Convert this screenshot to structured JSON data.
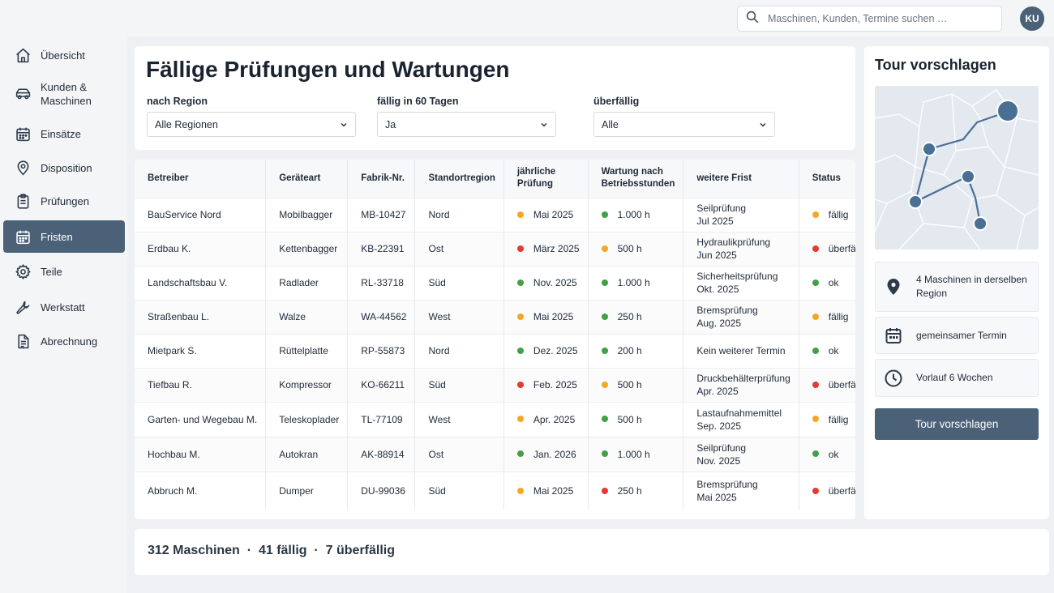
{
  "search": {
    "placeholder": "Maschinen, Kunden, Termine suchen …"
  },
  "user": {
    "initials": "KU"
  },
  "sidebar": {
    "items": [
      {
        "label": "Übersicht",
        "icon": "home-icon"
      },
      {
        "label": "Kunden & Maschinen",
        "icon": "truck-icon"
      },
      {
        "label": "Einsätze",
        "icon": "calendar-icon"
      },
      {
        "label": "Disposition",
        "icon": "map-pin-icon"
      },
      {
        "label": "Prüfungen",
        "icon": "clipboard-icon"
      },
      {
        "label": "Fristen",
        "icon": "calendar-icon",
        "active": true
      },
      {
        "label": "Teile",
        "icon": "gear-icon"
      },
      {
        "label": "Werkstatt",
        "icon": "wrench-icon"
      },
      {
        "label": "Abrechnung",
        "icon": "document-icon"
      }
    ]
  },
  "filters": {
    "title": "Fällige Prüfungen und Wartungen",
    "region": {
      "label": "nach Region",
      "value": "Alle Regionen"
    },
    "due": {
      "label": "fällig in 60 Tagen",
      "value": "Ja"
    },
    "overdue": {
      "label": "überfällig",
      "value": "Alle"
    }
  },
  "table": {
    "headers": [
      "Betreiber",
      "Geräteart",
      "Fabrik-Nr.",
      "Standortregion",
      "jährliche Prüfung",
      "Wartung nach Betriebsstunden",
      "weitere Frist",
      "Status"
    ],
    "rows": [
      {
        "operator": "BauService Nord",
        "type": "Mobilbagger",
        "serial": "MB-10427",
        "region": "Nord",
        "annual": "Mai 2025",
        "annual_status": "orange",
        "hours": "1.000 h",
        "hours_status": "green",
        "deadline_name": "Seilprüfung",
        "deadline_date": "Jul 2025",
        "status": "fällig",
        "status_color": "orange"
      },
      {
        "operator": "Erdbau K.",
        "type": "Kettenbagger",
        "serial": "KB-22391",
        "region": "Ost",
        "annual": "März 2025",
        "annual_status": "red",
        "hours": "500 h",
        "hours_status": "orange",
        "deadline_name": "Hydraulikprüfung",
        "deadline_date": "Jun 2025",
        "status": "überfällig",
        "status_color": "red"
      },
      {
        "operator": "Landschaftsbau V.",
        "type": "Radlader",
        "serial": "RL-33718",
        "region": "Süd",
        "annual": "Nov. 2025",
        "annual_status": "green",
        "hours": "1.000 h",
        "hours_status": "green",
        "deadline_name": "Sicherheitsprüfung",
        "deadline_date": "Okt. 2025",
        "status": "ok",
        "status_color": "green"
      },
      {
        "operator": "Straßenbau L.",
        "type": "Walze",
        "serial": "WA-44562",
        "region": "West",
        "annual": "Mai 2025",
        "annual_status": "orange",
        "hours": "250 h",
        "hours_status": "green",
        "deadline_name": "Bremsprüfung",
        "deadline_date": "Aug. 2025",
        "status": "fällig",
        "status_color": "orange"
      },
      {
        "operator": "Mietpark S.",
        "type": "Rüttelplatte",
        "serial": "RP-55873",
        "region": "Nord",
        "annual": "Dez. 2025",
        "annual_status": "green",
        "hours": "200 h",
        "hours_status": "green",
        "deadline_name": "Kein weiterer Termin",
        "deadline_date": "",
        "status": "ok",
        "status_color": "green"
      },
      {
        "operator": "Tiefbau R.",
        "type": "Kompressor",
        "serial": "KO-66211",
        "region": "Süd",
        "annual": "Feb. 2025",
        "annual_status": "red",
        "hours": "500 h",
        "hours_status": "orange",
        "deadline_name": "Druckbehälterprüfung",
        "deadline_date": "Apr. 2025",
        "status": "überfällig",
        "status_color": "red"
      },
      {
        "operator": "Garten- und Wegebau M.",
        "type": "Teleskoplader",
        "serial": "TL-77109",
        "region": "West",
        "annual": "Apr. 2025",
        "annual_status": "orange",
        "hours": "500 h",
        "hours_status": "green",
        "deadline_name": "Lastaufnahmemittel",
        "deadline_date": "Sep. 2025",
        "status": "fällig",
        "status_color": "orange"
      },
      {
        "operator": "Hochbau M.",
        "type": "Autokran",
        "serial": "AK-88914",
        "region": "Ost",
        "annual": "Jan. 2026",
        "annual_status": "green",
        "hours": "1.000 h",
        "hours_status": "green",
        "deadline_name": "Seilprüfung",
        "deadline_date": "Nov. 2025",
        "status": "ok",
        "status_color": "green"
      },
      {
        "operator": "Abbruch M.",
        "type": "Dumper",
        "serial": "DU-99036",
        "region": "Süd",
        "annual": "Mai 2025",
        "annual_status": "orange",
        "hours": "250 h",
        "hours_status": "red",
        "deadline_name": "Bremsprüfung",
        "deadline_date": "Mai 2025",
        "status": "überfällig",
        "status_color": "red"
      }
    ]
  },
  "tour": {
    "title": "Tour vorschlagen",
    "info": [
      {
        "icon": "map-pin-icon",
        "text": "4 Maschinen in derselben Region"
      },
      {
        "icon": "calendar-icon",
        "text": "gemeinsamer Termin"
      },
      {
        "icon": "clock-icon",
        "text": "Vorlauf 6 Wochen"
      }
    ],
    "button_label": "Tour vorschlagen"
  },
  "summary": {
    "machines": "312 Maschinen",
    "due": "41 fällig",
    "overdue": "7 überfällig"
  },
  "colors": {
    "accent": "#4a6178",
    "status_green": "#43a047",
    "status_orange": "#f5a623",
    "status_red": "#e53935"
  }
}
